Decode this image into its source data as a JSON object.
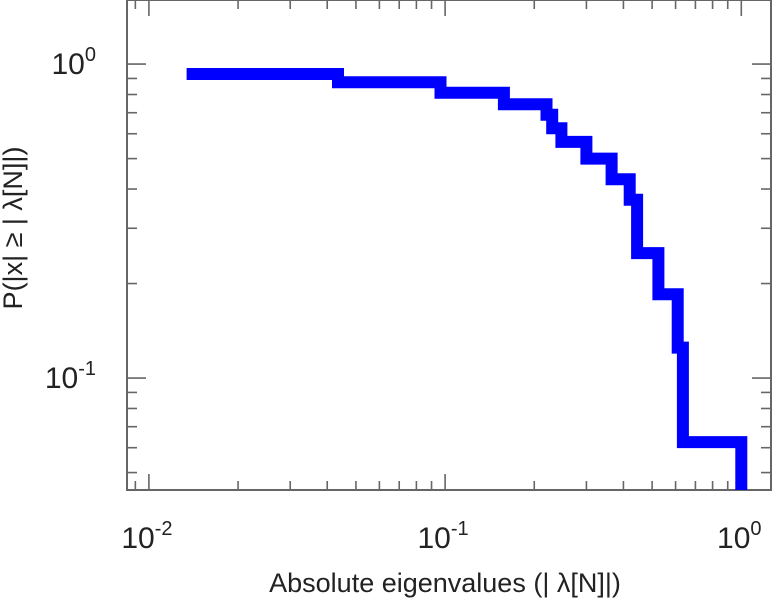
{
  "chart_data": {
    "type": "line",
    "style": "step",
    "title": "",
    "xlabel": "Absolute eigenvalues (|     λ[N]|)",
    "ylabel": "P(|x|  ≥ | λ[N]|)",
    "xscale": "log",
    "yscale": "log",
    "xlim": [
      0.0085,
      1.25
    ],
    "ylim": [
      0.044,
      1.6
    ],
    "grid": false,
    "color": "#0000ff",
    "x_ticks": [
      {
        "value": 0.01,
        "base": "10",
        "exp": "-2"
      },
      {
        "value": 0.1,
        "base": "10",
        "exp": "-1"
      },
      {
        "value": 1,
        "base": "10",
        "exp": "0"
      }
    ],
    "y_ticks": [
      {
        "value": 0.1,
        "base": "10",
        "exp": "-1"
      },
      {
        "value": 1,
        "base": "10",
        "exp": "0"
      }
    ],
    "series": [
      {
        "x": [
          0.0134,
          0.0435,
          0.0435,
          0.0965,
          0.0965,
          0.158,
          0.158,
          0.22,
          0.22,
          0.23,
          0.23,
          0.247,
          0.247,
          0.3,
          0.3,
          0.365,
          0.365,
          0.42,
          0.42,
          0.445,
          0.445,
          0.525,
          0.525,
          0.61,
          0.61,
          0.635,
          0.635,
          1.0,
          1.0
        ],
        "y": [
          0.93,
          0.93,
          0.875,
          0.875,
          0.81,
          0.81,
          0.745,
          0.745,
          0.69,
          0.69,
          0.625,
          0.625,
          0.565,
          0.565,
          0.5,
          0.5,
          0.43,
          0.43,
          0.37,
          0.37,
          0.25,
          0.25,
          0.185,
          0.185,
          0.125,
          0.125,
          0.0625,
          0.0625,
          0.044
        ]
      }
    ]
  }
}
